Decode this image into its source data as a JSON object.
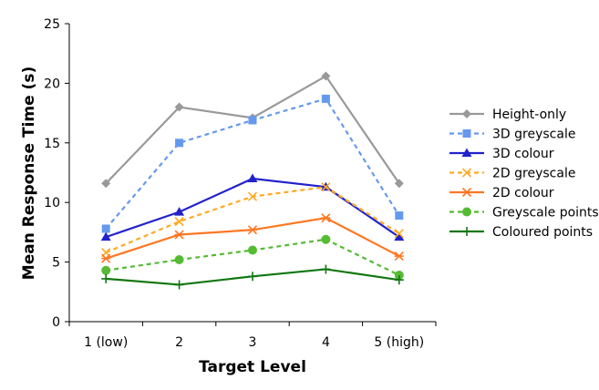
{
  "chart_data": {
    "type": "line",
    "title": "",
    "xlabel": "Target Level",
    "ylabel": "Mean Response Time (s)",
    "categories": [
      "1 (low)",
      "2",
      "3",
      "4",
      "5 (high)"
    ],
    "ylim": [
      0,
      25
    ],
    "yticks": [
      0,
      5,
      10,
      15,
      20,
      25
    ],
    "grid": false,
    "legend_position": "right",
    "series": [
      {
        "name": "Height-only",
        "values": [
          11.6,
          18.0,
          17.1,
          20.6,
          11.6
        ],
        "color": "#999999",
        "dash": "solid",
        "marker": "diamond"
      },
      {
        "name": "3D greyscale",
        "values": [
          7.8,
          15.0,
          16.9,
          18.7,
          8.9
        ],
        "color": "#6699ee",
        "dash": "dashed",
        "marker": "square"
      },
      {
        "name": "3D colour",
        "values": [
          7.1,
          9.2,
          12.0,
          11.3,
          7.1
        ],
        "color": "#2222cc",
        "dash": "solid",
        "marker": "triangle"
      },
      {
        "name": "2D greyscale",
        "values": [
          5.8,
          8.4,
          10.5,
          11.3,
          7.4
        ],
        "color": "#ffaa22",
        "dash": "dashed",
        "marker": "x"
      },
      {
        "name": "2D colour",
        "values": [
          5.3,
          7.3,
          7.7,
          8.7,
          5.5
        ],
        "color": "#ff7722",
        "dash": "solid",
        "marker": "asterisk"
      },
      {
        "name": "Greyscale points",
        "values": [
          4.3,
          5.2,
          6.0,
          6.9,
          3.9
        ],
        "color": "#55bb33",
        "dash": "dashed",
        "marker": "circle"
      },
      {
        "name": "Coloured points",
        "values": [
          3.6,
          3.1,
          3.8,
          4.4,
          3.5
        ],
        "color": "#117711",
        "dash": "solid",
        "marker": "plus"
      }
    ]
  }
}
